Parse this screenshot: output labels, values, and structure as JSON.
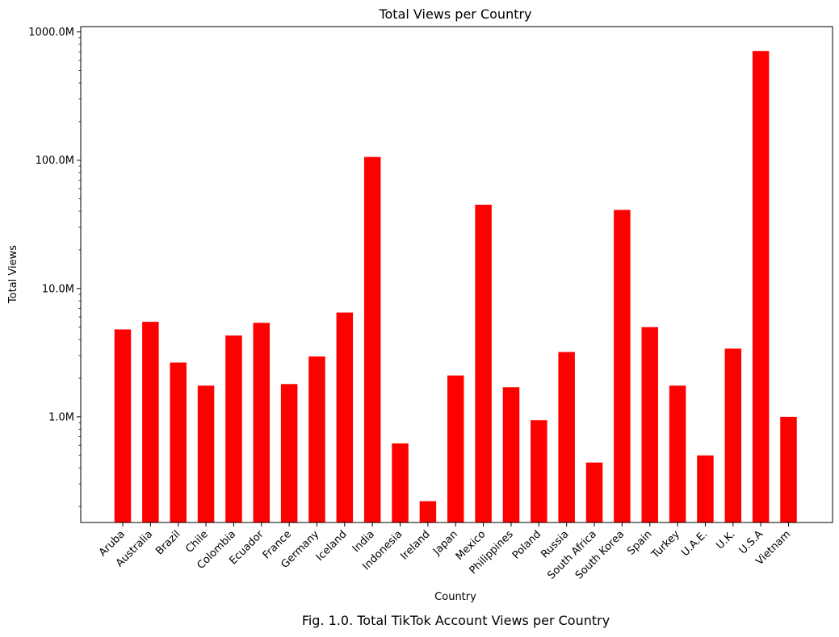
{
  "chart_data": {
    "type": "bar",
    "title": "Total Views per Country",
    "xlabel": "Country",
    "ylabel": "Total Views",
    "yscale": "log",
    "ylim": [
      150000,
      1100000000
    ],
    "yticks": [
      1000000,
      10000000,
      100000000,
      1000000000
    ],
    "ytick_labels": [
      "1.0M",
      "10.0M",
      "100.0M",
      "1000.0M"
    ],
    "categories": [
      "Aruba",
      "Australia",
      "Brazil",
      "Chile",
      "Colombia",
      "Ecuador",
      "France",
      "Germany",
      "Iceland",
      "India",
      "Indonesia",
      "Ireland",
      "Japan",
      "Mexico",
      "Philippines",
      "Poland",
      "Russia",
      "South Africa",
      "South Korea",
      "Spain",
      "Turkey",
      "U.A.E.",
      "U.K.",
      "U.S.A",
      "Vietnam"
    ],
    "values": [
      4800000,
      5500000,
      2650000,
      1750000,
      4300000,
      5400000,
      1800000,
      2950000,
      6500000,
      106000000,
      620000,
      220000,
      2100000,
      45000000,
      1700000,
      940000,
      3200000,
      440000,
      41000000,
      5000000,
      1750000,
      500000,
      3400000,
      710000000,
      1000000
    ],
    "bar_color": "#ff0000",
    "grid": false,
    "legend": "none"
  },
  "caption": "Fig. 1.0. Total TikTok Account Views per Country"
}
